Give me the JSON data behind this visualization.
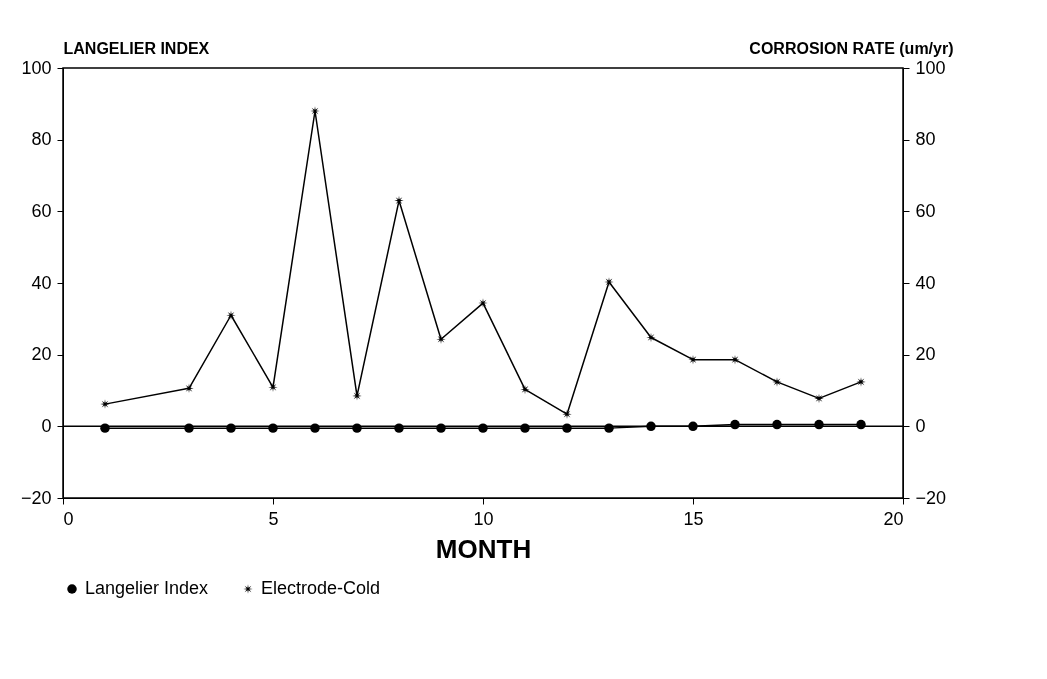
{
  "chart_data": {
    "type": "line",
    "xlabel": "MONTH",
    "ylabel": "LANGELIER INDEX",
    "y2label": "CORROSION RATE (um/yr)",
    "xlim": [
      0,
      20
    ],
    "xticks": [
      0,
      5,
      10,
      15,
      20
    ],
    "ylim": [
      -20,
      100
    ],
    "yticks": [
      -20,
      0,
      20,
      40,
      60,
      80,
      100
    ],
    "y2lim": [
      -20,
      100
    ],
    "y2ticks": [
      -20,
      0,
      20,
      40,
      60,
      80,
      100
    ],
    "x": [
      1,
      3,
      4,
      5,
      6,
      7,
      8,
      9,
      10,
      11,
      12,
      13,
      14,
      15,
      16,
      17,
      18,
      19
    ],
    "series": [
      {
        "name": "Langelier Index",
        "color": "#000000",
        "marker": "circle",
        "values": [
          -0.5,
          -0.5,
          -0.5,
          -0.5,
          -0.5,
          -0.5,
          -0.5,
          -0.5,
          -0.5,
          -0.5,
          -0.5,
          -0.5,
          0,
          0,
          0.5,
          0.5,
          0.5,
          0.5
        ]
      },
      {
        "name": "Electrode-Cold",
        "color": "#000000",
        "marker": "star",
        "axis": "y2",
        "values": [
          6.2,
          10.6,
          31,
          10.9,
          88,
          8.5,
          63,
          24.3,
          34.4,
          10.3,
          3.4,
          40.3,
          24.8,
          18.6,
          18.6,
          12.4,
          7.8,
          12.4
        ]
      }
    ],
    "ref_lines": [
      {
        "axis": "y",
        "value": 0
      }
    ],
    "grid": false,
    "legend": "bottom",
    "line_style": "solid"
  }
}
